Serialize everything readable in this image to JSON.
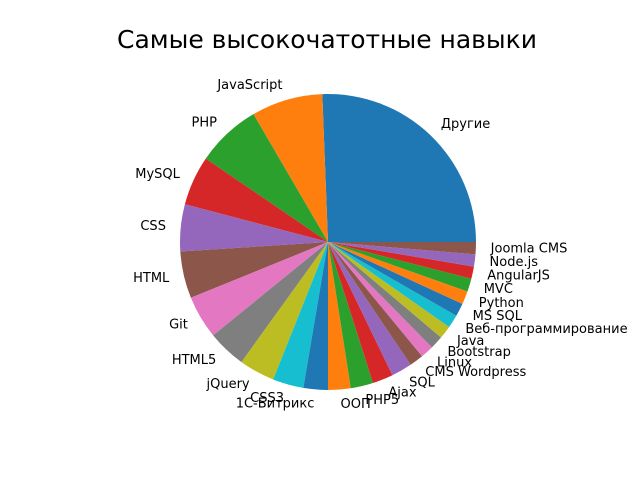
{
  "chart_data": {
    "type": "pie",
    "title": "Самые высокочатотные навыки",
    "start_angle_deg": 0,
    "direction": "counterclockwise",
    "categories": [
      "Другие",
      "JavaScript",
      "PHP",
      "MySQL",
      "CSS",
      "HTML",
      "Git",
      "HTML5",
      "jQuery",
      "CSS3",
      "1С-Битрикс",
      "ООП",
      "PHP5",
      "Ajax",
      "SQL",
      "CMS Wordpress",
      "Linux",
      "Bootstrap",
      "Java",
      "Веб-программирование",
      "MS SQL",
      "Python",
      "MVC",
      "AngularJS",
      "Node.js",
      "Joomla CMS"
    ],
    "values": [
      25.0,
      7.6,
      6.9,
      5.3,
      5.0,
      5.0,
      4.6,
      4.1,
      3.8,
      3.3,
      2.6,
      2.4,
      2.4,
      2.2,
      2.2,
      1.5,
      1.4,
      1.4,
      1.4,
      1.4,
      1.4,
      1.4,
      1.4,
      1.3,
      1.3,
      1.3
    ],
    "colors": [
      "#1f77b4",
      "#ff7f0e",
      "#2ca02c",
      "#d62728",
      "#9467bd",
      "#8c564b",
      "#e377c2",
      "#7f7f7f",
      "#bcbd22",
      "#17becf"
    ]
  }
}
